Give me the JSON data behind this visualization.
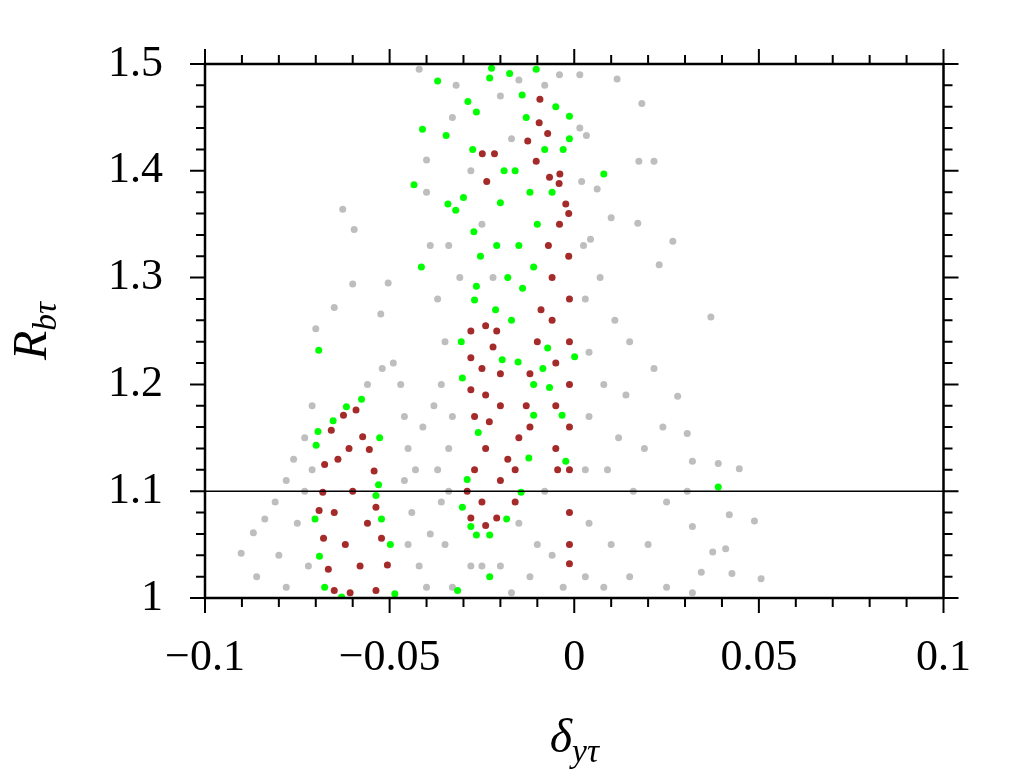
{
  "chart_data": {
    "type": "scatter",
    "xlabel": "δ$_{yτ}$",
    "ylabel": "R$_{bτ}$",
    "xlim": [
      -0.1,
      0.1
    ],
    "ylim": [
      1,
      1.5
    ],
    "xticks": [
      {
        "value": -0.1,
        "label": "−0.1"
      },
      {
        "value": -0.09,
        "label": null
      },
      {
        "value": -0.08,
        "label": null
      },
      {
        "value": -0.07,
        "label": null
      },
      {
        "value": -0.06,
        "label": null
      },
      {
        "value": -0.05,
        "label": "−0.05"
      },
      {
        "value": -0.04,
        "label": null
      },
      {
        "value": -0.03,
        "label": null
      },
      {
        "value": -0.02,
        "label": null
      },
      {
        "value": -0.01,
        "label": null
      },
      0,
      {
        "value": 0.01,
        "label": null
      },
      {
        "value": 0.02,
        "label": null
      },
      {
        "value": 0.03,
        "label": null
      },
      {
        "value": 0.04,
        "label": null
      },
      0.05,
      {
        "value": 0.06,
        "label": null
      },
      {
        "value": 0.07,
        "label": null
      },
      {
        "value": 0.08,
        "label": null
      },
      {
        "value": 0.09,
        "label": null
      },
      0.1
    ],
    "yticks": [
      1,
      {
        "value": 1.02,
        "label": null
      },
      {
        "value": 1.04,
        "label": null
      },
      {
        "value": 1.06,
        "label": null
      },
      {
        "value": 1.08,
        "label": null
      },
      1.1,
      {
        "value": 1.12,
        "label": null
      },
      {
        "value": 1.14,
        "label": null
      },
      {
        "value": 1.16,
        "label": null
      },
      {
        "value": 1.18,
        "label": null
      },
      1.2,
      {
        "value": 1.22,
        "label": null
      },
      {
        "value": 1.24,
        "label": null
      },
      {
        "value": 1.26,
        "label": null
      },
      {
        "value": 1.28,
        "label": null
      },
      1.3,
      {
        "value": 1.32,
        "label": null
      },
      {
        "value": 1.34,
        "label": null
      },
      {
        "value": 1.36,
        "label": null
      },
      {
        "value": 1.38,
        "label": null
      },
      1.4,
      {
        "value": 1.42,
        "label": null
      },
      {
        "value": 1.44,
        "label": null
      },
      {
        "value": 1.46,
        "label": null
      },
      {
        "value": 1.48,
        "label": null
      },
      1.5
    ],
    "marker": "circle",
    "ref_lines": [
      {
        "axis": "y",
        "value": 1.1,
        "color": "#000000"
      }
    ],
    "series": [
      {
        "color": "#bebebe",
        "x": [
          -0.0902,
          -0.0869,
          -0.0838,
          -0.086,
          -0.081,
          -0.078,
          -0.076,
          -0.073,
          -0.071,
          -0.07,
          -0.065,
          -0.06,
          -0.0627,
          -0.0596,
          -0.0504,
          -0.0524,
          -0.08,
          -0.075,
          -0.078,
          -0.073,
          -0.072,
          -0.071,
          -0.056,
          -0.052,
          -0.049,
          -0.047,
          -0.046,
          -0.045,
          -0.046,
          -0.044,
          -0.045,
          -0.042,
          -0.04,
          -0.043,
          -0.041,
          -0.038,
          -0.039,
          -0.036,
          -0.037,
          -0.035,
          -0.034,
          -0.034,
          -0.028,
          -0.025,
          -0.02,
          -0.015,
          -0.012,
          -0.01,
          -0.008,
          -0.006,
          -0.033,
          -0.017,
          -0.003,
          -0.036,
          -0.035,
          -0.037,
          -0.039,
          -0.04,
          -0.04,
          -0.042,
          -0.033,
          -0.032,
          -0.028,
          -0.033,
          -0.025,
          -0.022,
          -0.015,
          -0.017,
          -0.008,
          -0.004,
          -0.034,
          -0.031,
          -0.02,
          0.0015,
          0.0015,
          0.002,
          0.0025,
          0.003,
          0.004,
          0.004,
          0.003,
          0.004,
          0.003,
          0.007,
          0.011,
          0.015,
          0.0216,
          0.028,
          0.0306,
          0.032,
          0.0306,
          0.032,
          0.0344,
          0.032,
          0.0044,
          0.008,
          0.012,
          0.016,
          0.02,
          0.025,
          0.01,
          0.014,
          0.019,
          0.024,
          0.008,
          0.009,
          0.025,
          0.015,
          0.0116,
          0.0183,
          0.0033,
          0.0175,
          0.0216,
          0.0062,
          0.01,
          0.0172,
          0.0267,
          0.023,
          0.037,
          0.039,
          0.0447,
          0.0488,
          0.0375,
          0.0506,
          0.0427,
          0.042,
          0.041
        ],
        "values": [
          1.042,
          1.061,
          1.074,
          1.02,
          1.09,
          1.11,
          1.13,
          1.15,
          1.18,
          1.252,
          1.272,
          1.294,
          1.364,
          1.345,
          1.295,
          1.266,
          1.04,
          1.07,
          1.01,
          1.1,
          1.03,
          1.12,
          1.2,
          1.215,
          1.22,
          1.2,
          1.17,
          1.14,
          1.11,
          1.08,
          1.05,
          1.03,
          1.01,
          1.12,
          1.16,
          1.18,
          1.06,
          1.09,
          1.12,
          1.05,
          1.1,
          1.14,
          1.03,
          1.03,
          1.03,
          1.07,
          1.02,
          1.05,
          1.1,
          1.04,
          1.01,
          1.005,
          1.01,
          1.2,
          1.24,
          1.28,
          1.33,
          1.38,
          1.41,
          1.495,
          1.17,
          1.48,
          1.4,
          1.45,
          1.35,
          1.3,
          1.485,
          1.43,
          1.48,
          1.49,
          1.33,
          1.3,
          1.47,
          1.49,
          1.44,
          1.39,
          1.33,
          1.28,
          1.23,
          1.17,
          1.12,
          1.07,
          1.02,
          1.3,
          1.26,
          1.24,
          1.215,
          1.189,
          1.154,
          1.128,
          1.1,
          1.067,
          1.024,
          1.005,
          1.336,
          1.2,
          1.15,
          1.1,
          1.05,
          1.01,
          1.05,
          1.19,
          1.14,
          1.16,
          1.01,
          1.12,
          1.09,
          1.02,
          1.486,
          1.463,
          1.433,
          1.409,
          1.409,
          1.383,
          1.356,
          1.351,
          1.334,
          1.312,
          1.263,
          1.126,
          1.121,
          1.072,
          1.043,
          1.018,
          1.023,
          1.078,
          1.046
        ]
      },
      {
        "color": "#00ff00",
        "x": [
          -0.0692,
          -0.0617,
          -0.0576,
          -0.0653,
          -0.0694,
          -0.0699,
          -0.0527,
          -0.053,
          -0.0702,
          -0.069,
          -0.0676,
          -0.063,
          -0.0486,
          -0.0498,
          -0.0522,
          -0.0537,
          -0.0316,
          -0.0229,
          -0.0306,
          -0.0303,
          -0.026,
          -0.029,
          -0.0303,
          -0.028,
          -0.0265,
          -0.0229,
          -0.0183,
          -0.0144,
          -0.0123,
          -0.011,
          -0.011,
          -0.0085,
          -0.0072,
          -0.0067,
          -0.0023,
          -0.0033,
          -0.0213,
          -0.0152,
          -0.0195,
          0.0001,
          0.008,
          0.039,
          -0.0224,
          -0.0103,
          -0.0175,
          -0.037,
          -0.0288,
          -0.0411,
          -0.0347,
          -0.0434,
          -0.0414,
          -0.0342,
          -0.0321,
          -0.03,
          -0.0275,
          -0.0265,
          -0.0229,
          -0.0141,
          -0.0013,
          -0.0013,
          -0.0272,
          -0.0254,
          -0.0265,
          -0.027,
          -0.018,
          -0.015,
          -0.012,
          -0.01,
          -0.008,
          -0.005,
          -0.013,
          -0.02,
          -0.016,
          -0.006,
          -0.003,
          -0.017,
          -0.014,
          -0.011,
          -0.021,
          -0.019
        ],
        "values": [
          1.232,
          1.179,
          1.186,
          1.166,
          1.156,
          1.143,
          1.15,
          1.106,
          1.074,
          1.039,
          1.01,
          1.001,
          1.004,
          1.05,
          1.074,
          1.096,
          1.007,
          1.02,
          1.24,
          1.206,
          1.155,
          1.111,
          1.085,
          1.067,
          1.059,
          1.059,
          1.074,
          1.099,
          1.131,
          1.171,
          1.2,
          1.215,
          1.234,
          1.197,
          1.128,
          1.171,
          1.27,
          1.221,
          1.223,
          1.226,
          1.397,
          1.104,
          1.496,
          1.495,
          1.491,
          1.484,
          1.465,
          1.439,
          1.433,
          1.387,
          1.31,
          1.369,
          1.363,
          1.375,
          1.42,
          1.455,
          1.487,
          1.471,
          1.451,
          1.43,
          1.343,
          1.32,
          1.292,
          1.279,
          1.3,
          1.33,
          1.38,
          1.35,
          1.42,
          1.46,
          1.45,
          1.37,
          1.4,
          1.38,
          1.42,
          1.26,
          1.29,
          1.31,
          1.33,
          1.4
        ]
      },
      {
        "color": "#a52a2a",
        "x": [
          -0.0625,
          -0.0591,
          -0.0658,
          -0.0676,
          -0.0681,
          -0.0691,
          -0.0679,
          -0.0666,
          -0.065,
          -0.0607,
          -0.0537,
          -0.0506,
          -0.0522,
          -0.0537,
          -0.0542,
          -0.0555,
          -0.0573,
          -0.06,
          -0.062,
          -0.058,
          -0.064,
          -0.056,
          -0.061,
          -0.065,
          -0.028,
          -0.024,
          -0.021,
          -0.028,
          -0.028,
          -0.027,
          -0.023,
          -0.02,
          -0.02,
          -0.022,
          -0.025,
          -0.024,
          -0.029,
          -0.028,
          -0.024,
          -0.021,
          -0.016,
          -0.025,
          -0.027,
          -0.024,
          -0.02,
          -0.018,
          -0.015,
          -0.013,
          -0.012,
          -0.01,
          -0.009,
          -0.012,
          -0.016,
          -0.007,
          -0.006,
          -0.006,
          -0.005,
          -0.005,
          -0.005,
          -0.0045,
          -0.0015,
          -0.0015,
          -0.0013,
          -0.0013,
          -0.0013,
          -0.0013,
          -0.0013,
          -0.0013,
          -0.0013,
          -0.0013,
          -0.0093,
          -0.0095,
          -0.0072,
          -0.0249,
          -0.0216,
          -0.0237,
          -0.0126,
          -0.0103,
          -0.0039,
          -0.0041,
          -0.0023,
          -0.0067,
          -0.004
        ],
        "values": [
          1.171,
          1.176,
          1.157,
          1.125,
          1.099,
          1.082,
          1.056,
          1.027,
          1.007,
          1.005,
          1.007,
          1.031,
          1.056,
          1.085,
          1.119,
          1.139,
          1.151,
          1.1,
          1.05,
          1.03,
          1.13,
          1.07,
          1.14,
          1.08,
          1.25,
          1.255,
          1.25,
          1.225,
          1.195,
          1.17,
          1.165,
          1.18,
          1.21,
          1.235,
          1.215,
          1.19,
          1.1,
          1.075,
          1.068,
          1.075,
          1.09,
          1.09,
          1.12,
          1.14,
          1.11,
          1.13,
          1.15,
          1.18,
          1.21,
          1.24,
          1.27,
          1.16,
          1.12,
          1.33,
          1.3,
          1.26,
          1.22,
          1.18,
          1.14,
          1.12,
          1.36,
          1.32,
          1.28,
          1.24,
          1.2,
          1.16,
          1.12,
          1.08,
          1.05,
          1.032,
          1.467,
          1.445,
          1.435,
          1.416,
          1.416,
          1.39,
          1.428,
          1.409,
          1.397,
          1.388,
          1.369,
          1.394,
          1.35
        ]
      }
    ]
  }
}
